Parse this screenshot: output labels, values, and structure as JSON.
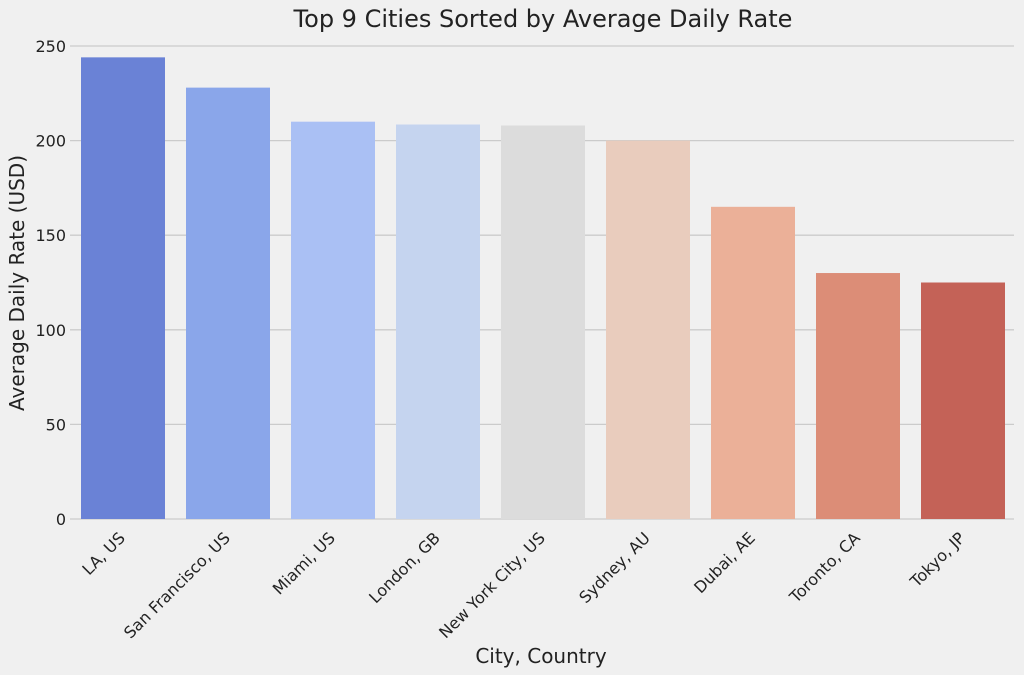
{
  "chart_data": {
    "type": "bar",
    "title": "Top 9 Cities Sorted by Average Daily Rate",
    "xlabel": "City, Country",
    "ylabel": "Average Daily Rate (USD)",
    "categories": [
      "LA, US",
      "San Francisco, US",
      "Miami, US",
      "London, GB",
      "New York City, US",
      "Sydney, AU",
      "Dubai, AE",
      "Toronto, CA",
      "Tokyo, JP"
    ],
    "values": [
      244,
      228,
      210,
      208.5,
      208,
      200,
      165,
      130,
      125
    ],
    "colors": [
      "#6a82d6",
      "#8aa6ea",
      "#aac0f4",
      "#c5d4ef",
      "#dcdcdc",
      "#e9ccbd",
      "#ebb098",
      "#dc8d77",
      "#c46257"
    ],
    "ylim": [
      0,
      250
    ],
    "yticks": [
      0,
      50,
      100,
      150,
      200,
      250
    ],
    "grid": "horizontal"
  }
}
